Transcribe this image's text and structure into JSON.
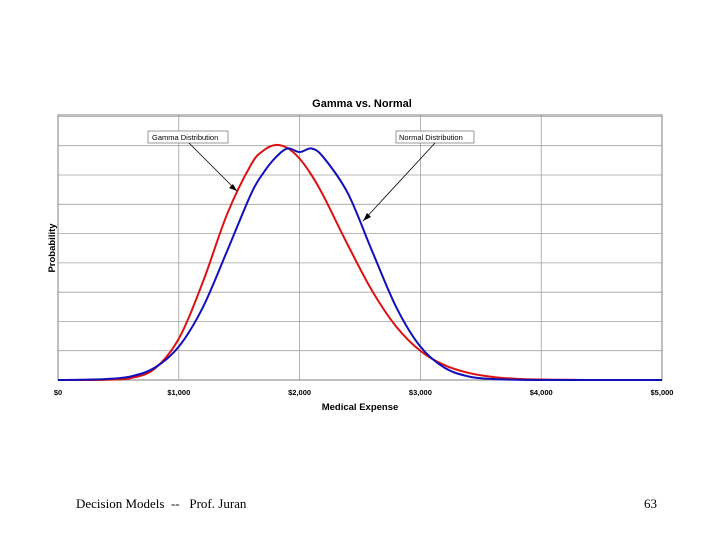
{
  "chart_data": {
    "type": "line",
    "title": "Gamma vs. Normal",
    "xlabel": "Medical Expense",
    "ylabel": "Probability",
    "xlim": [
      0,
      5000
    ],
    "ylim": [
      0,
      1
    ],
    "y_tick_labels_shown": false,
    "grid": true,
    "x_ticks": [
      {
        "value": 0,
        "label": "$0"
      },
      {
        "value": 1000,
        "label": "$1,000"
      },
      {
        "value": 2000,
        "label": "$2,000"
      },
      {
        "value": 3000,
        "label": "$3,000"
      },
      {
        "value": 4000,
        "label": "$4,000"
      },
      {
        "value": 5000,
        "label": "$5,000"
      }
    ],
    "y_gridlines": 9,
    "series": [
      {
        "name": "Gamma Distribution",
        "color": "#dd1111",
        "x": [
          0,
          200,
          400,
          600,
          800,
          1000,
          1200,
          1400,
          1600,
          1700,
          1800,
          1900,
          2000,
          2100,
          2200,
          2400,
          2600,
          2800,
          3000,
          3200,
          3400,
          3600,
          3800,
          4000,
          4200,
          4400,
          4600,
          4800,
          5000
        ],
        "values": [
          0.0,
          0.0,
          0.001,
          0.008,
          0.048,
          0.176,
          0.418,
          0.706,
          0.918,
          0.976,
          1.0,
          0.987,
          0.942,
          0.871,
          0.781,
          0.574,
          0.38,
          0.227,
          0.124,
          0.063,
          0.03,
          0.013,
          0.005,
          0.002,
          0.001,
          0.0,
          0.0,
          0.0,
          0.0
        ]
      },
      {
        "name": "Normal Distribution",
        "color": "#1111bb",
        "x": [
          0,
          200,
          400,
          600,
          800,
          1000,
          1200,
          1400,
          1600,
          1700,
          1800,
          1900,
          2000,
          2100,
          2200,
          2400,
          2600,
          2800,
          3000,
          3200,
          3400,
          3600,
          3800,
          4000,
          4200,
          4400,
          4600,
          4800,
          5000
        ],
        "values": [
          0.0,
          0.001,
          0.004,
          0.015,
          0.052,
          0.142,
          0.31,
          0.549,
          0.794,
          0.881,
          0.946,
          0.985,
          0.97,
          0.985,
          0.946,
          0.794,
          0.549,
          0.31,
          0.142,
          0.052,
          0.015,
          0.004,
          0.001,
          0.0,
          0.0,
          0.0,
          0.0,
          0.0,
          0.0
        ]
      }
    ],
    "annotations": [
      {
        "text": "Gamma Distribution",
        "points_to": "Gamma Distribution"
      },
      {
        "text": "Normal Distribution",
        "points_to": "Normal Distribution"
      }
    ]
  },
  "footer": {
    "left": "Decision Models  --   Prof. Juran",
    "right": "63"
  }
}
